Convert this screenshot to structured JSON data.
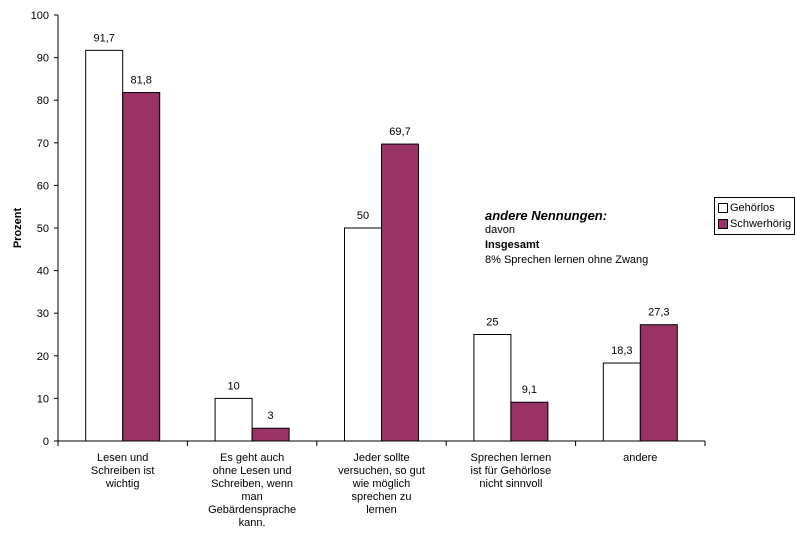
{
  "chart_data": {
    "type": "bar",
    "categories": [
      "Lesen und Schreiben ist wichtig",
      "Es geht auch ohne Lesen und Schreiben, wenn man Gebärdensprache kann.",
      "Jeder sollte versuchen, so gut wie möglich sprechen zu lernen",
      "Sprechen lernen ist für Gehörlose nicht sinnvoll",
      "andere"
    ],
    "category_lines": [
      [
        "Lesen und",
        "Schreiben ist",
        "wichtig"
      ],
      [
        "Es geht auch",
        "ohne Lesen und",
        "Schreiben, wenn",
        "man",
        "Gebärdensprache",
        "kann."
      ],
      [
        "Jeder sollte",
        "versuchen, so gut",
        "wie möglich",
        "sprechen zu",
        "lernen"
      ],
      [
        "Sprechen lernen",
        "ist für Gehörlose",
        "nicht sinnvoll"
      ],
      [
        "andere"
      ]
    ],
    "series": [
      {
        "name": "Gehörlos",
        "values": [
          91.7,
          10,
          50,
          25,
          18.3
        ],
        "labels": [
          "91,7",
          "10",
          "50",
          "25",
          "18,3"
        ],
        "color": "#ffffff"
      },
      {
        "name": "Schwerhörig",
        "values": [
          81.8,
          3,
          69.7,
          9.1,
          27.3
        ],
        "labels": [
          "81,8",
          "3",
          "69,7",
          "9,1",
          "27,3"
        ],
        "color": "#993366"
      }
    ],
    "ylabel": "Prozent",
    "ylim": [
      0,
      100
    ],
    "yticks": [
      0,
      10,
      20,
      30,
      40,
      50,
      60,
      70,
      80,
      90,
      100
    ],
    "grid": false,
    "legend_position": "right"
  },
  "annotation": {
    "title": "andere Nennungen:",
    "line1": "davon",
    "line2": "Insgesamt",
    "line3": "8% Sprechen lernen ohne Zwang"
  },
  "legend": {
    "item1": "Gehörlos",
    "item2": "Schwerhörig"
  }
}
